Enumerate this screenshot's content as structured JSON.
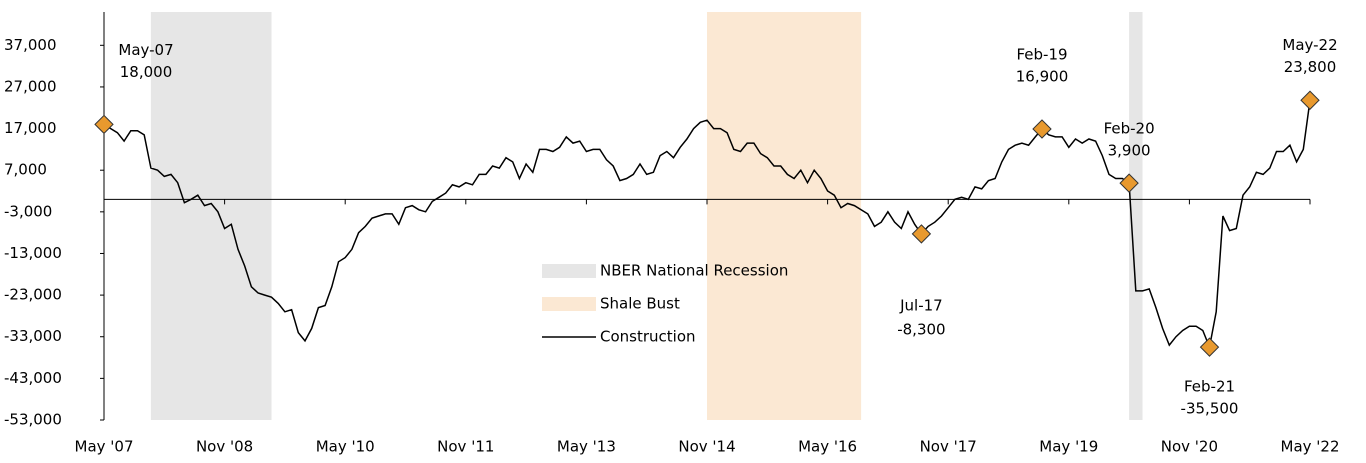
{
  "chart_data": {
    "type": "line",
    "categories": [
      "May '07",
      null,
      null,
      null,
      null,
      null,
      null,
      null,
      null,
      null,
      null,
      null,
      null,
      null,
      null,
      null,
      null,
      null,
      "Nov '08",
      null,
      null,
      null,
      null,
      null,
      null,
      null,
      null,
      null,
      null,
      null,
      null,
      null,
      null,
      null,
      null,
      null,
      "May '10",
      null,
      null,
      null,
      null,
      null,
      null,
      null,
      null,
      null,
      null,
      null,
      null,
      null,
      null,
      null,
      null,
      null,
      "Nov '11",
      null,
      null,
      null,
      null,
      null,
      null,
      null,
      null,
      null,
      null,
      null,
      null,
      null,
      null,
      null,
      null,
      null,
      "May '13",
      null,
      null,
      null,
      null,
      null,
      null,
      null,
      null,
      null,
      null,
      null,
      null,
      null,
      null,
      null,
      null,
      null,
      "Nov '14",
      null,
      null,
      null,
      null,
      null,
      null,
      null,
      null,
      null,
      null,
      null,
      null,
      null,
      null,
      null,
      null,
      null,
      "May '16",
      null,
      null,
      null,
      null,
      null,
      null,
      null,
      null,
      null,
      null,
      null,
      null,
      null,
      null,
      null,
      null,
      null,
      "Nov '17",
      null,
      null,
      null,
      null,
      null,
      null,
      null,
      null,
      null,
      null,
      null,
      null,
      null,
      null,
      null,
      null,
      null,
      "May '19",
      null,
      null,
      null,
      null,
      null,
      null,
      null,
      null,
      null,
      null,
      null,
      null,
      null,
      null,
      null,
      null,
      null,
      "Nov '20",
      null,
      null,
      null,
      null,
      null,
      null,
      null,
      null,
      null,
      null,
      null,
      null,
      null,
      null,
      null,
      null,
      null,
      "May '22"
    ],
    "series": [
      {
        "name": "Construction",
        "color": "#000000",
        "values": [
          18000,
          17000,
          16000,
          14000,
          16500,
          16500,
          15500,
          7500,
          7000,
          5500,
          6000,
          4000,
          -800,
          0,
          1000,
          -1500,
          -1000,
          -3000,
          -7000,
          -6000,
          -12000,
          -16000,
          -21000,
          -22500,
          -23000,
          -23500,
          -25000,
          -27000,
          -26500,
          -32000,
          -34000,
          -31000,
          -26000,
          -25500,
          -21000,
          -15000,
          -14000,
          -12000,
          -8000,
          -6500,
          -4500,
          -4000,
          -3500,
          -3500,
          -6000,
          -2000,
          -1500,
          -2500,
          -3000,
          -500,
          500,
          1500,
          3500,
          3000,
          4000,
          3500,
          6000,
          6000,
          8000,
          7500,
          10000,
          9000,
          5000,
          8500,
          6500,
          12000,
          12000,
          11500,
          12500,
          15000,
          13500,
          14000,
          11500,
          12000,
          12000,
          9500,
          8000,
          4500,
          5000,
          6000,
          8500,
          6000,
          6500,
          10500,
          11500,
          10000,
          12500,
          14500,
          17000,
          18500,
          19000,
          17000,
          17000,
          16000,
          12000,
          11500,
          13500,
          13500,
          11000,
          10000,
          8000,
          8000,
          6000,
          5000,
          7000,
          4000,
          7000,
          5000,
          2000,
          1000,
          -2000,
          -1000,
          -1500,
          -2500,
          -3500,
          -6500,
          -5500,
          -3000,
          -5500,
          -7000,
          -3000,
          -6000,
          -8300,
          -6500,
          -5500,
          -4000,
          -2000,
          0,
          500,
          0,
          3000,
          2500,
          4500,
          5000,
          9000,
          12000,
          13000,
          13500,
          13000,
          15000,
          16900,
          15500,
          15000,
          15000,
          12500,
          14500,
          13500,
          14500,
          14000,
          10500,
          6000,
          5000,
          5000,
          3900,
          -22000,
          -22000,
          -21500,
          -26000,
          -31000,
          -35000,
          -33000,
          -31500,
          -30500,
          -30500,
          -31500,
          -35500,
          -27000,
          -4000,
          -7500,
          -7000,
          1000,
          3000,
          6500,
          6000,
          7500,
          11500,
          11500,
          13000,
          9000,
          12000,
          23800
        ]
      }
    ],
    "bands": [
      {
        "name": "NBER National Recession",
        "color": "#e6e6e6",
        "ranges": [
          [
            7,
            25
          ],
          [
            153,
            155
          ]
        ]
      },
      {
        "name": "Shale Bust",
        "color": "#fbe8d3",
        "ranges": [
          [
            90,
            113
          ]
        ]
      }
    ],
    "annotations": [
      {
        "index": 0,
        "label": "May-07",
        "value_label": "18,000"
      },
      {
        "index": 122,
        "label": "Jul-17",
        "value_label": "-8,300"
      },
      {
        "index": 140,
        "label": "Feb-19",
        "value_label": "16,900"
      },
      {
        "index": 153,
        "label": "Feb-20",
        "value_label": "3,900"
      },
      {
        "index": 165,
        "label": "Feb-21",
        "value_label": "-35,500"
      },
      {
        "index": 180,
        "label": "May-22",
        "value_label": "23,800"
      }
    ],
    "marker_color": "#e8992e",
    "ylim": [
      -53000,
      45000
    ],
    "yticks": [
      {
        "value": -53000,
        "label": "-53,000"
      },
      {
        "value": -43000,
        "label": "-43,000"
      },
      {
        "value": -33000,
        "label": "-33,000"
      },
      {
        "value": -23000,
        "label": "-23,000"
      },
      {
        "value": -13000,
        "label": "-13,000"
      },
      {
        "value": -3000,
        "label": "-3,000"
      },
      {
        "value": 7000,
        "label": "7,000"
      },
      {
        "value": 17000,
        "label": "17,000"
      },
      {
        "value": 27000,
        "label": "27,000"
      },
      {
        "value": 37000,
        "label": "37,000"
      }
    ]
  }
}
